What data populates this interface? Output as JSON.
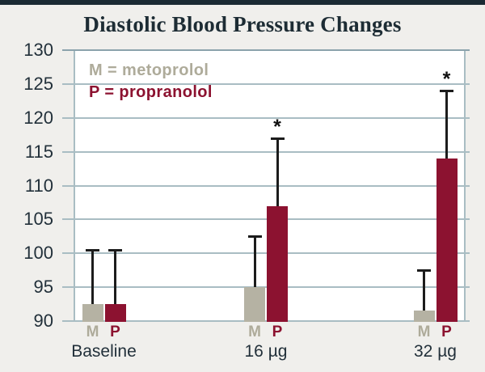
{
  "window": {
    "top_border_color": "#1b2a33",
    "background": "#f0efec",
    "plot_background": "#ffffff"
  },
  "chart_data": {
    "type": "bar",
    "title": "Diastolic Blood Pressure Changes",
    "xlabel": "",
    "ylabel": "",
    "ylim": [
      90,
      130
    ],
    "yticks": [
      90,
      95,
      100,
      105,
      110,
      115,
      120,
      125,
      130
    ],
    "grid": true,
    "legend_position": "top-left-inside",
    "significance_marker": "*",
    "categories": [
      "Baseline",
      "16 µg",
      "32 µg"
    ],
    "series": [
      {
        "name": "M",
        "drug": "metoprolol",
        "color": "#b5b2a3",
        "label_color": "#aeab9a",
        "values": [
          92.5,
          95,
          91.5
        ],
        "error_tops": [
          100.5,
          102.5,
          97.5
        ],
        "significant": [
          false,
          false,
          false
        ]
      },
      {
        "name": "P",
        "drug": "propranolol",
        "color": "#8c1230",
        "label_color": "#8c1230",
        "values": [
          92.5,
          107,
          114
        ],
        "error_tops": [
          100.5,
          117,
          124
        ],
        "significant": [
          false,
          true,
          true
        ]
      }
    ],
    "legend": [
      {
        "text": "M = metoprolol",
        "color": "#aeab9a"
      },
      {
        "text": "P = propranolol",
        "color": "#8c1230"
      }
    ],
    "axis_colors": {
      "gridline": "#a9bdc3",
      "top_border": "#8ba3ac",
      "text": "#22303a",
      "error_bar": "#1c1c1c"
    }
  }
}
